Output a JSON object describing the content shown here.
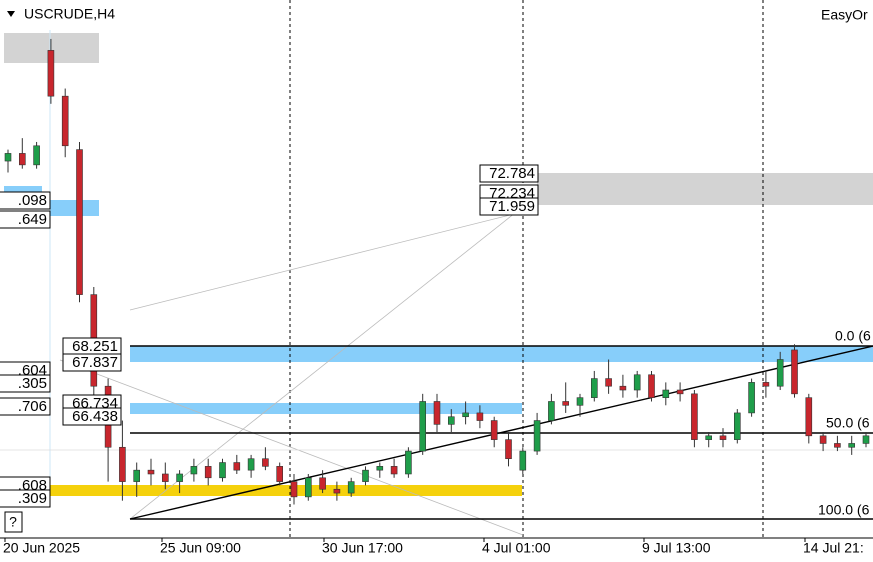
{
  "header": {
    "symbol": "USCRUDE,H4",
    "indicator": "EasyOr"
  },
  "chart_data": {
    "type": "candlestick",
    "ylim": [
      63.17,
      77.32
    ],
    "open": [
      73.1,
      73.3,
      73.0,
      76.0,
      74.8,
      73.4,
      69.6,
      67.2,
      65.6,
      64.7,
      65.0,
      64.9,
      64.7,
      64.9,
      65.1,
      64.8,
      65.2,
      65.0,
      65.3,
      65.1,
      64.7,
      64.3,
      64.8,
      64.5,
      64.4,
      64.7,
      65.0,
      65.1,
      64.9,
      65.5,
      66.8,
      66.2,
      66.4,
      66.5,
      66.3,
      65.8,
      65.0,
      65.5,
      66.3,
      66.8,
      66.7,
      66.9,
      67.4,
      67.2,
      67.1,
      67.5,
      66.9,
      67.1,
      67.0,
      65.8,
      65.9,
      65.8,
      66.5,
      67.3,
      67.2,
      68.15,
      66.9,
      65.9,
      65.7,
      65.6,
      65.7
    ],
    "high": [
      73.4,
      73.7,
      73.6,
      76.3,
      75.0,
      73.6,
      69.8,
      67.4,
      66.3,
      65.2,
      65.3,
      65.2,
      65.0,
      65.3,
      65.3,
      65.3,
      65.4,
      65.4,
      65.6,
      65.2,
      64.9,
      64.9,
      65.0,
      64.7,
      64.8,
      65.1,
      65.2,
      65.3,
      65.6,
      67.0,
      67.0,
      66.6,
      66.8,
      66.7,
      66.4,
      66.0,
      65.6,
      66.5,
      67.0,
      67.3,
      67.0,
      67.6,
      67.9,
      67.5,
      67.6,
      67.6,
      67.3,
      67.3,
      67.1,
      66.0,
      66.1,
      66.6,
      67.4,
      67.6,
      68.1,
      68.3,
      67.0,
      66.0,
      65.9,
      65.9,
      66.0
    ],
    "low": [
      72.8,
      72.9,
      72.9,
      74.6,
      73.2,
      69.4,
      66.9,
      64.7,
      64.2,
      64.3,
      64.6,
      64.5,
      64.4,
      64.7,
      64.6,
      64.7,
      64.9,
      64.8,
      65.0,
      64.6,
      64.1,
      64.2,
      64.4,
      64.2,
      64.3,
      64.6,
      64.8,
      64.8,
      64.8,
      65.4,
      66.0,
      66.0,
      66.2,
      66.1,
      65.6,
      65.1,
      64.9,
      65.4,
      66.2,
      66.5,
      66.4,
      66.8,
      67.0,
      66.9,
      66.9,
      66.8,
      66.7,
      66.8,
      65.6,
      65.6,
      65.6,
      65.7,
      66.4,
      66.9,
      67.1,
      66.9,
      65.7,
      65.5,
      65.5,
      65.4,
      65.6
    ],
    "close": [
      73.3,
      73.0,
      73.5,
      74.8,
      73.5,
      69.6,
      67.2,
      65.6,
      64.7,
      65.0,
      64.9,
      64.7,
      64.9,
      65.1,
      64.8,
      65.2,
      65.0,
      65.3,
      65.1,
      64.7,
      64.3,
      64.8,
      64.5,
      64.4,
      64.7,
      65.0,
      65.1,
      64.9,
      65.5,
      66.8,
      66.2,
      66.4,
      66.5,
      66.3,
      65.8,
      65.3,
      65.5,
      66.3,
      66.8,
      66.7,
      66.9,
      67.4,
      67.2,
      67.1,
      67.5,
      66.9,
      67.1,
      67.0,
      65.8,
      65.9,
      65.8,
      66.5,
      67.3,
      67.2,
      67.9,
      67.0,
      65.9,
      65.7,
      65.6,
      65.7,
      65.9
    ]
  },
  "price_labels": [
    "72.784",
    "72.234",
    "71.959",
    "68.251",
    "67.837",
    "66.734",
    "66.438",
    ".098",
    ".649",
    ".604",
    ".305",
    ".706",
    ".608",
    ".309"
  ],
  "fib_labels": [
    "0.0 (6",
    "50.0 (6",
    "100.0 (6"
  ],
  "time_labels": [
    "20 Jun 2025",
    "25 Jun 09:00",
    "30 Jun 17:00",
    "4 Jul 01:00",
    "9 Jul 13:00",
    "14 Jul 21:"
  ],
  "help": "?"
}
